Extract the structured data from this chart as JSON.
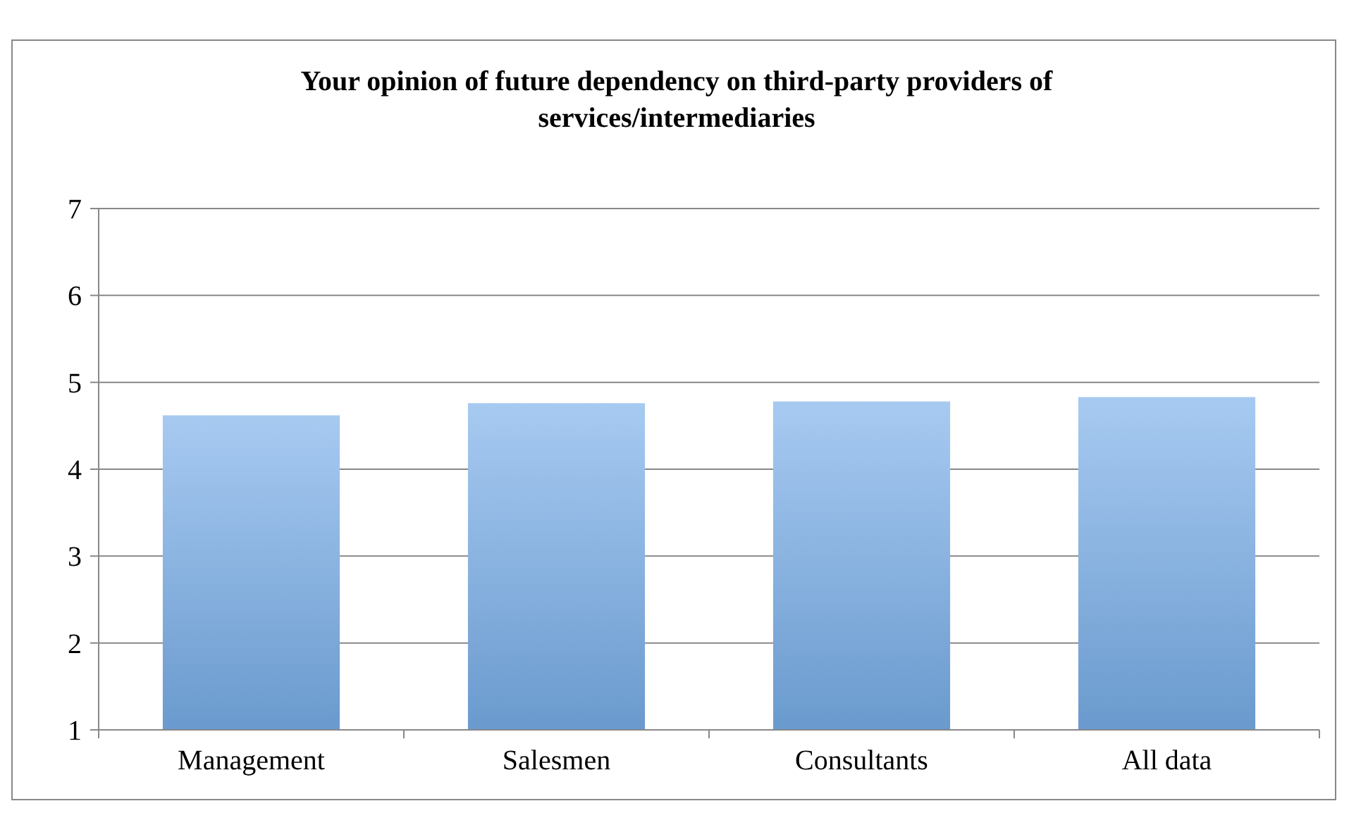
{
  "chart_data": {
    "type": "bar",
    "title": "Your opinion of future dependency on third-party providers of services/intermediaries",
    "categories": [
      "Management",
      "Salesmen",
      "Consultants",
      "All data"
    ],
    "values": [
      4.62,
      4.76,
      4.78,
      4.83
    ],
    "color": "#78aee9",
    "ylim": [
      1,
      7
    ],
    "yticks": [
      1,
      2,
      3,
      4,
      5,
      6,
      7
    ],
    "grid": "y"
  }
}
